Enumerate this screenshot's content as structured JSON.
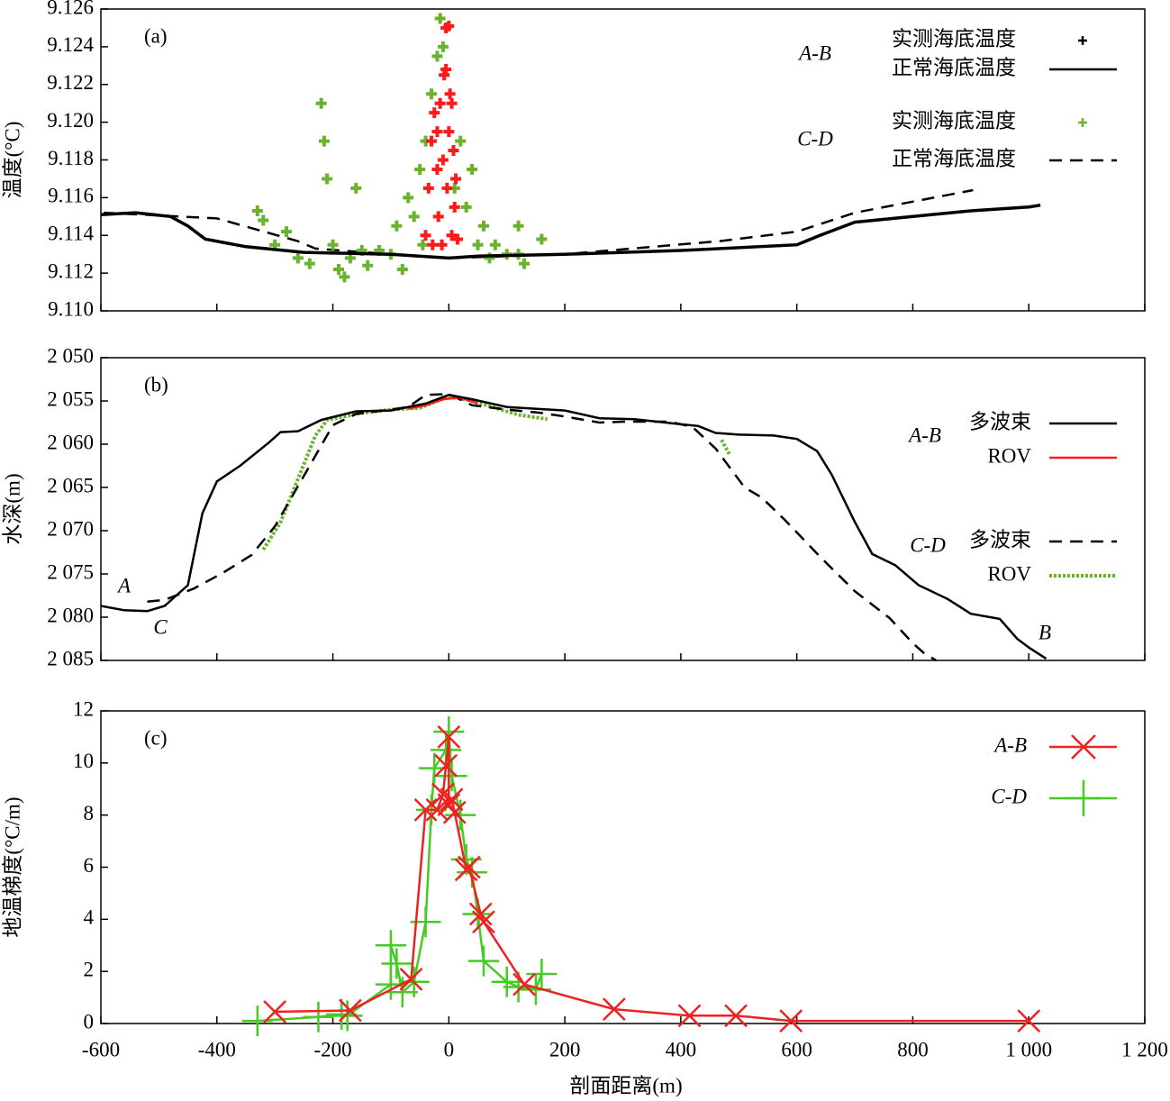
{
  "chart_data": [
    {
      "type": "scatter",
      "label": "(a)",
      "ylabel": "温度(°C)",
      "xlim": [
        -600,
        1200
      ],
      "xticks": [
        -600,
        -400,
        -200,
        0,
        200,
        400,
        600,
        800,
        1000,
        1200
      ],
      "ylim": [
        9.11,
        9.126
      ],
      "yticks": [
        {
          "value": 9.11,
          "label": "9.110"
        },
        9.112,
        9.114,
        9.116,
        9.118,
        {
          "value": 9.12,
          "label": "9.120"
        },
        9.122,
        9.124,
        9.126
      ],
      "groups": [
        {
          "name": "A-B",
          "series": [
            {
              "name": "实测海底温度",
              "kind": "scatter",
              "color": "#ff1a1a",
              "legend_color": "#000000",
              "x": [
                -40,
                -35,
                -30,
                -28,
                -25,
                -20,
                -18,
                -15,
                -12,
                -10,
                -8,
                -5,
                -3,
                0,
                2,
                5,
                8,
                10,
                12,
                15,
                -5,
                0,
                -20,
                5
              ],
              "values": [
                9.114,
                9.1165,
                9.119,
                9.1135,
                9.1205,
                9.1175,
                9.115,
                9.121,
                9.1135,
                9.118,
                9.1225,
                9.125,
                9.1165,
                9.1195,
                9.1215,
                9.114,
                9.1185,
                9.1155,
                9.117,
                9.1138,
                9.1228,
                9.1251,
                9.1195,
                9.121
              ]
            },
            {
              "name": "正常海底温度",
              "kind": "line",
              "dash": "solid",
              "color": "#000000",
              "x": [
                -600,
                -540,
                -480,
                -450,
                -420,
                -350,
                -250,
                -100,
                0,
                50,
                200,
                400,
                600,
                640,
                700,
                800,
                900,
                1000,
                1020
              ],
              "values": [
                9.1151,
                9.1152,
                9.115,
                9.1145,
                9.1138,
                9.1134,
                9.1131,
                9.113,
                9.1128,
                9.1129,
                9.113,
                9.1132,
                9.1135,
                9.114,
                9.1147,
                9.115,
                9.1153,
                9.1155,
                9.1156
              ]
            }
          ]
        },
        {
          "name": "C-D",
          "series": [
            {
              "name": "实测海底温度",
              "kind": "scatter",
              "color": "#6ab42d",
              "x": [
                -330,
                -320,
                -300,
                -280,
                -260,
                -240,
                -220,
                -215,
                -210,
                -200,
                -190,
                -180,
                -170,
                -160,
                -150,
                -140,
                -120,
                -100,
                -90,
                -80,
                -70,
                -60,
                -50,
                -45,
                -40,
                -30,
                -20,
                -15,
                -10,
                10,
                20,
                30,
                40,
                50,
                60,
                70,
                80,
                100,
                120,
                130,
                160,
                120
              ],
              "values": [
                9.1153,
                9.1148,
                9.1135,
                9.1142,
                9.1128,
                9.1125,
                9.121,
                9.119,
                9.117,
                9.1135,
                9.1122,
                9.1118,
                9.1128,
                9.1165,
                9.1132,
                9.1124,
                9.1132,
                9.113,
                9.1145,
                9.1122,
                9.116,
                9.115,
                9.1175,
                9.1135,
                9.119,
                9.1215,
                9.1235,
                9.1255,
                9.124,
                9.1165,
                9.119,
                9.1155,
                9.1175,
                9.1135,
                9.1145,
                9.1128,
                9.1135,
                9.113,
                9.1145,
                9.1125,
                9.1138,
                9.113
              ]
            },
            {
              "name": "正常海底温度",
              "kind": "line",
              "dash": "dashed",
              "color": "#000000",
              "x": [
                -595,
                -400,
                -261,
                -230,
                -100,
                0,
                200,
                469,
                600,
                700,
                904
              ],
              "values": [
                9.1152,
                9.1149,
                9.1137,
                9.1133,
                9.113,
                9.1128,
                9.113,
                9.1137,
                9.1142,
                9.1152,
                9.1164
              ]
            }
          ]
        }
      ]
    },
    {
      "type": "line",
      "label": "(b)",
      "ylabel": "水深(m)",
      "xlim": [
        -600,
        1200
      ],
      "xticks": [
        -600,
        -400,
        -200,
        0,
        200,
        400,
        600,
        800,
        1000,
        1200
      ],
      "ylim": [
        2085,
        2050
      ],
      "yticks": [
        {
          "value": 2085,
          "label": "2 085"
        },
        {
          "value": 2080,
          "label": "2 080"
        },
        {
          "value": 2075,
          "label": "2 075"
        },
        {
          "value": 2070,
          "label": "2 070"
        },
        {
          "value": 2065,
          "label": "2 065"
        },
        {
          "value": 2060,
          "label": "2 060"
        },
        {
          "value": 2055,
          "label": "2 055"
        },
        {
          "value": 2050,
          "label": "2 050"
        }
      ],
      "annotations": [
        "A",
        "C",
        "B"
      ],
      "groups": [
        {
          "name": "A-B",
          "series": [
            {
              "name": "多波束",
              "kind": "line",
              "dash": "solid",
              "color": "#000000",
              "x": [
                -600,
                -560,
                -520,
                -490,
                -450,
                -425,
                -400,
                -360,
                -310,
                -290,
                -260,
                -220,
                -160,
                -100,
                -40,
                0,
                40,
                100,
                200,
                260,
                320,
                400,
                430,
                460,
                500,
                560,
                600,
                635,
                660,
                700,
                730,
                770,
                810,
                860,
                900,
                950,
                980,
                1000,
                1030
              ],
              "values": [
                2078.7,
                2079.2,
                2079.3,
                2078.7,
                2076.3,
                2068,
                2064.3,
                2062.5,
                2059.8,
                2058.6,
                2058.5,
                2057.2,
                2056.2,
                2056.1,
                2055.3,
                2054.3,
                2054.8,
                2055.7,
                2056.1,
                2057,
                2057.1,
                2057.7,
                2057.9,
                2058.7,
                2058.9,
                2059,
                2059.4,
                2060.8,
                2063.5,
                2069,
                2072.7,
                2074,
                2076.3,
                2077.9,
                2079.6,
                2080.2,
                2082.5,
                2083.5,
                2084.8
              ]
            },
            {
              "name": "ROV",
              "kind": "line",
              "dash": "solid",
              "color": "#ff1a1a",
              "x": [
                -70,
                -40,
                -10,
                20,
                50
              ],
              "values": [
                2055.9,
                2055.5,
                2054.8,
                2054.6,
                2055.3
              ]
            }
          ]
        },
        {
          "name": "C-D",
          "series": [
            {
              "name": "多波束",
              "kind": "line",
              "dash": "dashed",
              "color": "#000000",
              "x": [
                -520,
                -490,
                -440,
                -390,
                -340,
                -300,
                -240,
                -200,
                -160,
                -100,
                -70,
                -40,
                0,
                40,
                100,
                160,
                200,
                260,
                300,
                380,
                420,
                460,
                510,
                540,
                580,
                640,
                700,
                760,
                800,
                820,
                840
              ],
              "values": [
                2078.2,
                2078,
                2076.7,
                2074.9,
                2072.8,
                2069.5,
                2062.5,
                2057.8,
                2056.5,
                2056,
                2055.7,
                2054.3,
                2054.2,
                2055.5,
                2056,
                2056.4,
                2056.8,
                2057.5,
                2057.4,
                2057.4,
                2058,
                2060.5,
                2065,
                2066.2,
                2068.8,
                2073,
                2077,
                2080.1,
                2083,
                2084.2,
                2085
              ]
            },
            {
              "name": "ROV",
              "kind": "line",
              "dash": "dotted",
              "color": "#6ab42d",
              "x": [
                -320,
                -290,
                -260,
                -230,
                -210,
                -150,
                -100,
                -50,
                0,
                40,
                80,
                120,
                170,
                300,
                470,
                485
              ],
              "values": [
                2072.2,
                2069,
                2064,
                2059,
                2057.2,
                2056.4,
                2056,
                2055.8,
                2054.5,
                2055,
                2055.8,
                2056.6,
                2057.1,
                null,
                2059.5,
                2061.3
              ]
            }
          ]
        }
      ]
    },
    {
      "type": "line",
      "label": "(c)",
      "ylabel": "地温梯度(°C/m)",
      "xlabel": "剖面距离(m)",
      "xlim": [
        -600,
        1200
      ],
      "xticks": [
        -600,
        -400,
        -200,
        0,
        200,
        400,
        600,
        800,
        {
          "value": 1000,
          "label": "1 000"
        },
        {
          "value": 1200,
          "label": "1 200"
        }
      ],
      "ylim": [
        0,
        12
      ],
      "yticks": [
        0,
        2,
        4,
        6,
        8,
        10,
        12
      ],
      "series": [
        {
          "name": "A-B",
          "kind": "line",
          "marker": "x",
          "dash": "solid",
          "color": "#ee2222",
          "x": [
            -300,
            -170,
            -65,
            -40,
            -20,
            -10,
            -5,
            0,
            0,
            5,
            10,
            30,
            35,
            55,
            60,
            130,
            285,
            415,
            495,
            590,
            1000
          ],
          "values": [
            0.45,
            0.5,
            1.7,
            8.2,
            8.2,
            8.8,
            9.9,
            11.0,
            8.4,
            8.6,
            8.1,
            5.9,
            6.0,
            4.2,
            3.9,
            1.5,
            0.55,
            0.3,
            0.3,
            0.1,
            0.1
          ]
        },
        {
          "name": "C-D",
          "kind": "line",
          "marker": "plus",
          "dash": "solid",
          "color": "#44cc22",
          "x": [
            -330,
            -225,
            -185,
            -175,
            -100,
            -100,
            -90,
            -80,
            -60,
            -40,
            -30,
            -25,
            -5,
            0,
            5,
            20,
            30,
            40,
            50,
            60,
            100,
            120,
            150,
            160
          ],
          "values": [
            0.1,
            0.25,
            0.35,
            0.3,
            1.5,
            3.0,
            2.3,
            1.2,
            1.6,
            3.9,
            8.2,
            9.8,
            10.5,
            11.2,
            9.5,
            8.0,
            6.3,
            5.8,
            4.2,
            2.4,
            1.6,
            1.4,
            1.3,
            1.9
          ]
        }
      ]
    }
  ]
}
